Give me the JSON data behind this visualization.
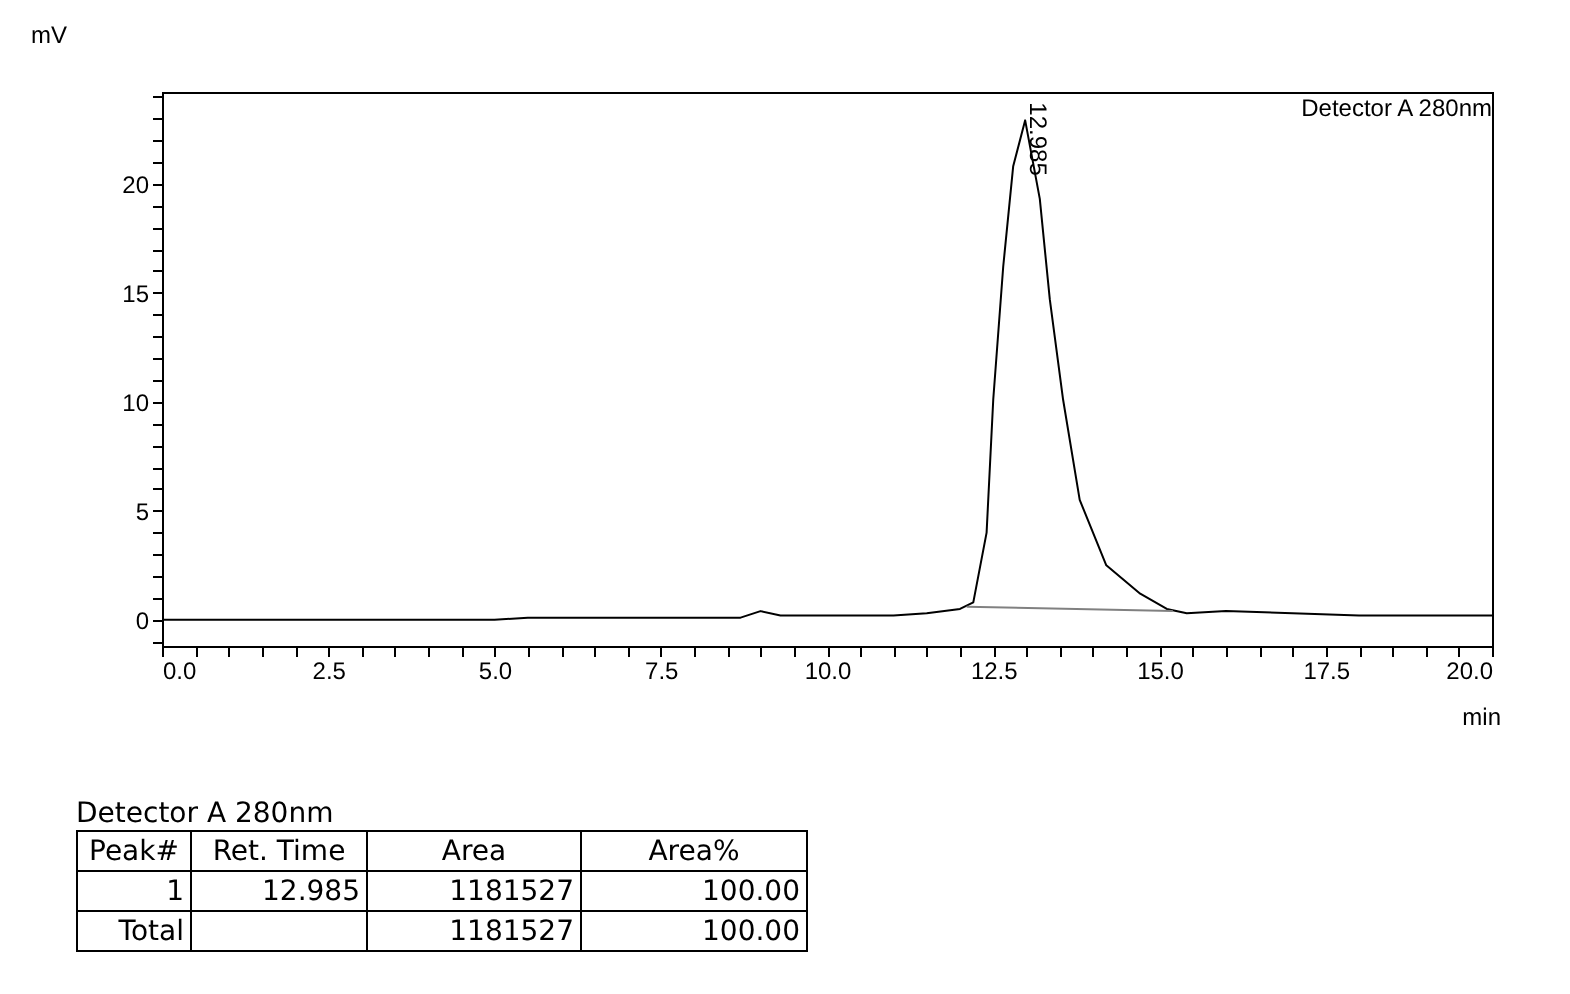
{
  "chart_data": {
    "type": "line",
    "xlabel": "min",
    "ylabel": "mV",
    "xlim": [
      0,
      20
    ],
    "ylim": [
      -1.2,
      24.2
    ],
    "xticks": [
      {
        "value": 0,
        "label": "0.0"
      },
      {
        "value": 0.5,
        "label": null
      },
      {
        "value": 1,
        "label": null
      },
      {
        "value": 1.5,
        "label": null
      },
      {
        "value": 2,
        "label": null
      },
      {
        "value": 2.5,
        "label": "2.5"
      },
      {
        "value": 3,
        "label": null
      },
      {
        "value": 3.5,
        "label": null
      },
      {
        "value": 4,
        "label": null
      },
      {
        "value": 4.5,
        "label": null
      },
      {
        "value": 5,
        "label": "5.0"
      },
      {
        "value": 5.5,
        "label": null
      },
      {
        "value": 6,
        "label": null
      },
      {
        "value": 6.5,
        "label": null
      },
      {
        "value": 7,
        "label": null
      },
      {
        "value": 7.5,
        "label": "7.5"
      },
      {
        "value": 8,
        "label": null
      },
      {
        "value": 8.5,
        "label": null
      },
      {
        "value": 9,
        "label": null
      },
      {
        "value": 9.5,
        "label": null
      },
      {
        "value": 10,
        "label": "10.0"
      },
      {
        "value": 10.5,
        "label": null
      },
      {
        "value": 11,
        "label": null
      },
      {
        "value": 11.5,
        "label": null
      },
      {
        "value": 12,
        "label": null
      },
      {
        "value": 12.5,
        "label": "12.5"
      },
      {
        "value": 13,
        "label": null
      },
      {
        "value": 13.5,
        "label": null
      },
      {
        "value": 14,
        "label": null
      },
      {
        "value": 14.5,
        "label": null
      },
      {
        "value": 15,
        "label": "15.0"
      },
      {
        "value": 15.5,
        "label": null
      },
      {
        "value": 16,
        "label": null
      },
      {
        "value": 16.5,
        "label": null
      },
      {
        "value": 17,
        "label": null
      },
      {
        "value": 17.5,
        "label": "17.5"
      },
      {
        "value": 18,
        "label": null
      },
      {
        "value": 18.5,
        "label": null
      },
      {
        "value": 19,
        "label": null
      },
      {
        "value": 19.5,
        "label": null
      },
      {
        "value": 20,
        "label": "20.0"
      }
    ],
    "yticks": [
      {
        "value": -1,
        "label": null
      },
      0,
      {
        "value": 1,
        "label": null
      },
      {
        "value": 2,
        "label": null
      },
      {
        "value": 3,
        "label": null
      },
      {
        "value": 4,
        "label": null
      },
      5,
      {
        "value": 6,
        "label": null
      },
      {
        "value": 7,
        "label": null
      },
      {
        "value": 8,
        "label": null
      },
      {
        "value": 9,
        "label": null
      },
      10,
      {
        "value": 11,
        "label": null
      },
      {
        "value": 12,
        "label": null
      },
      {
        "value": 13,
        "label": null
      },
      {
        "value": 14,
        "label": null
      },
      15,
      {
        "value": 16,
        "label": null
      },
      {
        "value": 17,
        "label": null
      },
      {
        "value": 18,
        "label": null
      },
      {
        "value": 19,
        "label": null
      },
      20,
      {
        "value": 21,
        "label": null
      },
      {
        "value": 22,
        "label": null
      },
      {
        "value": 23,
        "label": null
      },
      {
        "value": 24,
        "label": null
      }
    ],
    "grid": false,
    "line_style": "solid",
    "series": [
      {
        "color": "#000000",
        "x": [
          0,
          2,
          4,
          5,
          5.5,
          6.5,
          7,
          8.7,
          9.0,
          9.3,
          10,
          11,
          11.5,
          12,
          12.2,
          12.4,
          12.5,
          12.65,
          12.8,
          12.98,
          13.2,
          13.35,
          13.55,
          13.8,
          14.2,
          14.71,
          15.11,
          15.41,
          16,
          17,
          18,
          20
        ],
        "values": [
          0,
          0,
          0,
          0,
          0.1,
          0.1,
          0.1,
          0.1,
          0.4,
          0.2,
          0.2,
          0.2,
          0.3,
          0.5,
          0.8,
          4.0,
          10.1,
          16.2,
          20.8,
          22.9,
          19.3,
          14.7,
          10.1,
          5.5,
          2.5,
          1.2,
          0.5,
          0.3,
          0.4,
          0.3,
          0.2,
          0.2
        ]
      },
      {
        "color": "#808080",
        "x": [
          12.1,
          15.2
        ],
        "values": [
          0.6,
          0.4
        ]
      }
    ],
    "annotations": [
      "Detector A 280nm",
      {
        "text": "12.985",
        "x": 12.985,
        "y": 22.9
      },
      "Detector A 280nm",
      "Peak#",
      "Ret. Time",
      "Area",
      "Area%",
      "1",
      "12.985",
      "1181527",
      "100.00",
      "Total",
      "1181527",
      "100.00"
    ]
  }
}
